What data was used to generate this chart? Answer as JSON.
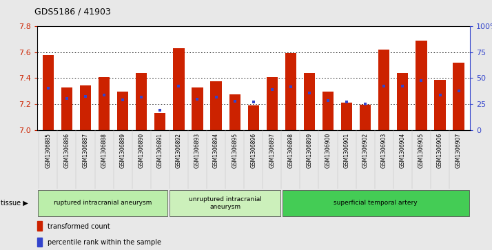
{
  "title": "GDS5186 / 41903",
  "samples": [
    "GSM1306885",
    "GSM1306886",
    "GSM1306887",
    "GSM1306888",
    "GSM1306889",
    "GSM1306890",
    "GSM1306891",
    "GSM1306892",
    "GSM1306893",
    "GSM1306894",
    "GSM1306895",
    "GSM1306896",
    "GSM1306897",
    "GSM1306898",
    "GSM1306899",
    "GSM1306900",
    "GSM1306901",
    "GSM1306902",
    "GSM1306903",
    "GSM1306904",
    "GSM1306905",
    "GSM1306906",
    "GSM1306907"
  ],
  "bar_values": [
    7.575,
    7.33,
    7.345,
    7.41,
    7.295,
    7.44,
    7.13,
    7.63,
    7.33,
    7.375,
    7.275,
    7.19,
    7.41,
    7.595,
    7.44,
    7.295,
    7.21,
    7.195,
    7.62,
    7.44,
    7.69,
    7.385,
    7.52
  ],
  "blue_values": [
    7.325,
    7.245,
    7.26,
    7.27,
    7.235,
    7.255,
    7.155,
    7.34,
    7.24,
    7.255,
    7.22,
    7.215,
    7.31,
    7.335,
    7.285,
    7.225,
    7.215,
    7.2,
    7.34,
    7.34,
    7.38,
    7.27,
    7.3
  ],
  "bar_color": "#cc2200",
  "blue_color": "#3344cc",
  "ymin": 7.0,
  "ymax": 7.8,
  "yticks_left": [
    7.0,
    7.2,
    7.4,
    7.6,
    7.8
  ],
  "right_yticks_pct": [
    0,
    25,
    50,
    75,
    100
  ],
  "groups": [
    {
      "label": "ruptured intracranial aneurysm",
      "start": 0,
      "end": 7,
      "color": "#bbeeaa"
    },
    {
      "label": "unruptured intracranial\naneurysm",
      "start": 7,
      "end": 13,
      "color": "#ccf0bb"
    },
    {
      "label": "superficial temporal artery",
      "start": 13,
      "end": 23,
      "color": "#44cc55"
    }
  ],
  "legend_items": [
    {
      "label": "transformed count",
      "color": "#cc2200"
    },
    {
      "label": "percentile rank within the sample",
      "color": "#3344cc"
    }
  ],
  "tissue_label": "tissue ▶",
  "fig_bg_color": "#e8e8e8",
  "plot_bg_color": "#ffffff",
  "xtick_bg_color": "#d8d8d8"
}
